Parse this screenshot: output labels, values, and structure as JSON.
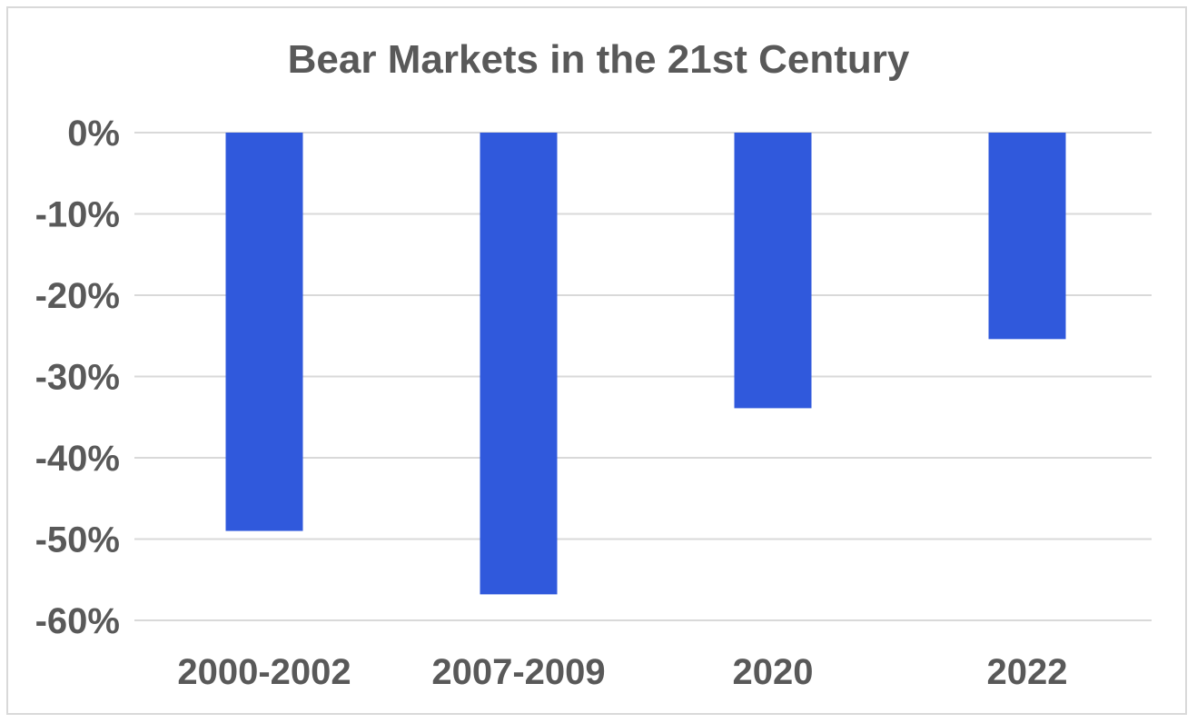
{
  "chart_data": {
    "type": "bar",
    "title": "Bear Markets in the 21st Century",
    "xlabel": "",
    "ylabel": "",
    "categories": [
      "2000-2002",
      "2007-2009",
      "2020",
      "2022"
    ],
    "values": [
      -49,
      -56.8,
      -33.9,
      -25.4
    ],
    "y_ticks": [
      "0%",
      "-10%",
      "-20%",
      "-30%",
      "-40%",
      "-50%",
      "-60%"
    ],
    "ylim": [
      -60,
      0
    ],
    "grid": true,
    "legend": "none",
    "colors": {
      "bar": "#3059dc",
      "grid": "#d9d9d9",
      "text": "#595959",
      "frame": "#d9d9d9"
    }
  }
}
